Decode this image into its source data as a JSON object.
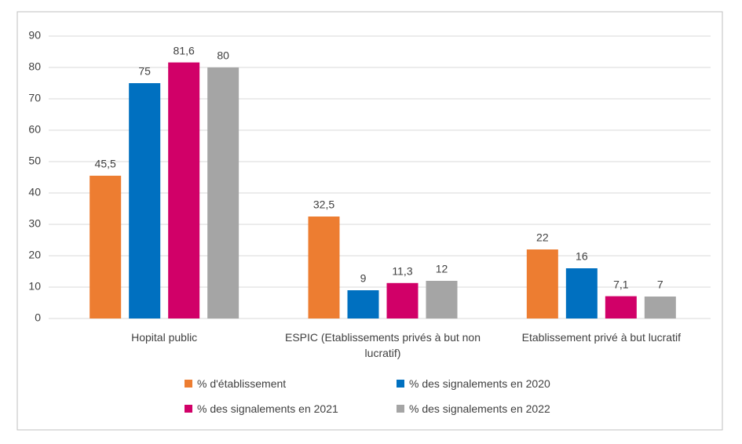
{
  "chart_data": {
    "type": "bar",
    "categories": [
      "Hopital public",
      "ESPIC (Etablissements privés à but non lucratif)",
      "Etablissement privé à but lucratif"
    ],
    "series": [
      {
        "name": "% d'établissement",
        "color": "#ed7d31",
        "values": [
          45.5,
          32.5,
          22
        ],
        "value_labels": [
          "45,5",
          "32,5",
          "22"
        ]
      },
      {
        "name": "% des signalements en 2020",
        "color": "#0070c0",
        "values": [
          75,
          9,
          16
        ],
        "value_labels": [
          "75",
          "9",
          "16"
        ]
      },
      {
        "name": "% des signalements en 2021",
        "color": "#d10068",
        "values": [
          81.6,
          11.3,
          7.1
        ],
        "value_labels": [
          "81,6",
          "11,3",
          "7,1"
        ]
      },
      {
        "name": "% des signalements en 2022",
        "color": "#a5a5a5",
        "values": [
          80,
          12,
          7
        ],
        "value_labels": [
          "80",
          "12",
          "7"
        ]
      }
    ],
    "ylim": [
      0,
      90
    ],
    "yticks": [
      0,
      10,
      20,
      30,
      40,
      50,
      60,
      70,
      80,
      90
    ],
    "grid": true
  }
}
